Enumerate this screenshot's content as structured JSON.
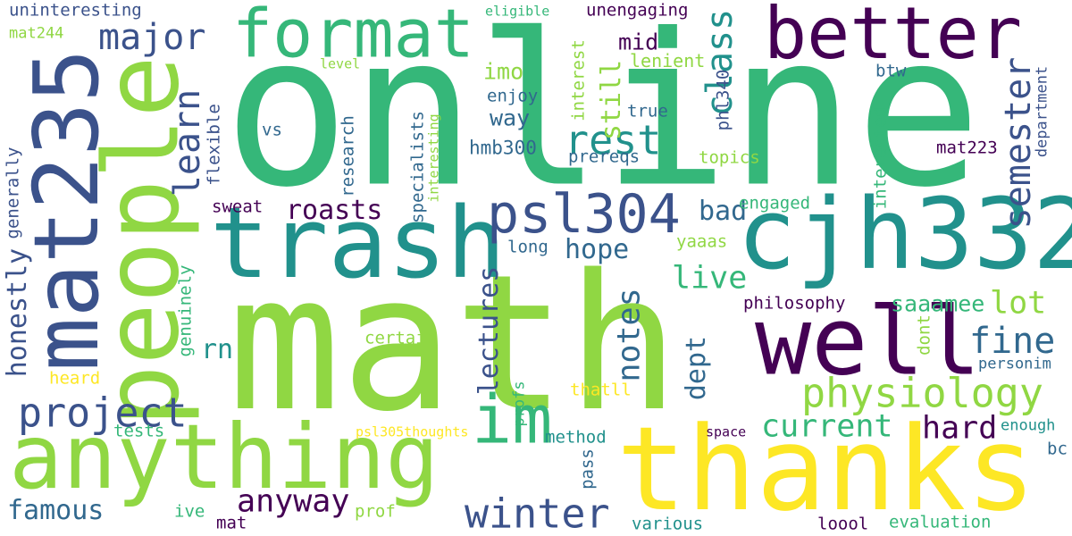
{
  "palette": {
    "background": "#ffffff",
    "dark_purple": "#440154",
    "indigo": "#3b528b",
    "slate_blue": "#31688e",
    "teal": "#21918c",
    "sea_green": "#35b779",
    "light_green": "#90d743",
    "yellow": "#fde725"
  },
  "words": [
    {
      "text": "online",
      "color": "#35b779"
    },
    {
      "text": "math",
      "color": "#90d743"
    },
    {
      "text": "thanks",
      "color": "#fde725"
    },
    {
      "text": "trash",
      "color": "#21918c"
    },
    {
      "text": "cjh332",
      "color": "#21918c"
    },
    {
      "text": "people",
      "color": "#90d743"
    },
    {
      "text": "mat235",
      "color": "#3b528b"
    },
    {
      "text": "anything",
      "color": "#90d743"
    },
    {
      "text": "well",
      "color": "#440154"
    },
    {
      "text": "better",
      "color": "#440154"
    },
    {
      "text": "format",
      "color": "#35b779"
    },
    {
      "text": "im",
      "color": "#35b779"
    },
    {
      "text": "psl304",
      "color": "#3b528b"
    },
    {
      "text": "physiology",
      "color": "#90d743"
    },
    {
      "text": "winter",
      "color": "#3b528b"
    },
    {
      "text": "project",
      "color": "#3b528b"
    },
    {
      "text": "rest",
      "color": "#21918c"
    },
    {
      "text": "major",
      "color": "#3b528b"
    },
    {
      "text": "semester",
      "color": "#3b528b"
    },
    {
      "text": "class",
      "color": "#21918c"
    },
    {
      "text": "learn",
      "color": "#3b528b"
    },
    {
      "text": "fine",
      "color": "#31688e"
    },
    {
      "text": "roasts",
      "color": "#440154"
    },
    {
      "text": "hope",
      "color": "#31688e"
    },
    {
      "text": "lectures",
      "color": "#3b528b"
    },
    {
      "text": "notes",
      "color": "#31688e"
    },
    {
      "text": "current",
      "color": "#35b779"
    },
    {
      "text": "anyway",
      "color": "#440154"
    },
    {
      "text": "famous",
      "color": "#31688e"
    },
    {
      "text": "honestly",
      "color": "#3b528b"
    },
    {
      "text": "live",
      "color": "#35b779"
    },
    {
      "text": "lot",
      "color": "#90d743"
    },
    {
      "text": "hard",
      "color": "#440154"
    },
    {
      "text": "dept",
      "color": "#31688e"
    },
    {
      "text": "bad",
      "color": "#31688e"
    },
    {
      "text": "still",
      "color": "#90d743"
    },
    {
      "text": "way",
      "color": "#31688e"
    },
    {
      "text": "rn",
      "color": "#21918c"
    },
    {
      "text": "saaamee",
      "color": "#35b779"
    },
    {
      "text": "mid",
      "color": "#440154"
    },
    {
      "text": "imo",
      "color": "#90d743"
    },
    {
      "text": "uninteresting",
      "color": "#3b528b"
    },
    {
      "text": "mat244",
      "color": "#90d743"
    },
    {
      "text": "eligible",
      "color": "#35b779"
    },
    {
      "text": "unengaging",
      "color": "#440154"
    },
    {
      "text": "level",
      "color": "#90d743"
    },
    {
      "text": "lenient",
      "color": "#90d743"
    },
    {
      "text": "btw",
      "color": "#31688e"
    },
    {
      "text": "interest",
      "color": "#90d743"
    },
    {
      "text": "enjoy",
      "color": "#31688e"
    },
    {
      "text": "phl340",
      "color": "#3b528b"
    },
    {
      "text": "true",
      "color": "#31688e"
    },
    {
      "text": "department",
      "color": "#3b528b"
    },
    {
      "text": "flexible",
      "color": "#3b528b"
    },
    {
      "text": "vs",
      "color": "#31688e"
    },
    {
      "text": "research",
      "color": "#31688e"
    },
    {
      "text": "specialists",
      "color": "#31688e"
    },
    {
      "text": "interesting",
      "color": "#90d743"
    },
    {
      "text": "hmb300",
      "color": "#31688e"
    },
    {
      "text": "prereqs",
      "color": "#31688e"
    },
    {
      "text": "topics",
      "color": "#90d743"
    },
    {
      "text": "interested",
      "color": "#35b779"
    },
    {
      "text": "mat223",
      "color": "#440154"
    },
    {
      "text": "generally",
      "color": "#3b528b"
    },
    {
      "text": "sweat",
      "color": "#440154"
    },
    {
      "text": "engaged",
      "color": "#35b779"
    },
    {
      "text": "yaaas",
      "color": "#90d743"
    },
    {
      "text": "long",
      "color": "#31688e"
    },
    {
      "text": "genuinely",
      "color": "#35b779"
    },
    {
      "text": "philosophy",
      "color": "#440154"
    },
    {
      "text": "certain",
      "color": "#90d743"
    },
    {
      "text": "dont",
      "color": "#90d743"
    },
    {
      "text": "personim",
      "color": "#31688e"
    },
    {
      "text": "heard",
      "color": "#fde725"
    },
    {
      "text": "thatll",
      "color": "#fde725"
    },
    {
      "text": "profs",
      "color": "#35b779"
    },
    {
      "text": "tests",
      "color": "#35b779"
    },
    {
      "text": "psl305thoughts",
      "color": "#fde725"
    },
    {
      "text": "method",
      "color": "#21918c"
    },
    {
      "text": "space",
      "color": "#440154"
    },
    {
      "text": "enough",
      "color": "#21918c"
    },
    {
      "text": "bc",
      "color": "#31688e"
    },
    {
      "text": "pass",
      "color": "#31688e"
    },
    {
      "text": "ive",
      "color": "#35b779"
    },
    {
      "text": "mat",
      "color": "#440154"
    },
    {
      "text": "prof",
      "color": "#90d743"
    },
    {
      "text": "various",
      "color": "#21918c"
    },
    {
      "text": "loool",
      "color": "#440154"
    },
    {
      "text": "evaluation",
      "color": "#35b779"
    }
  ]
}
